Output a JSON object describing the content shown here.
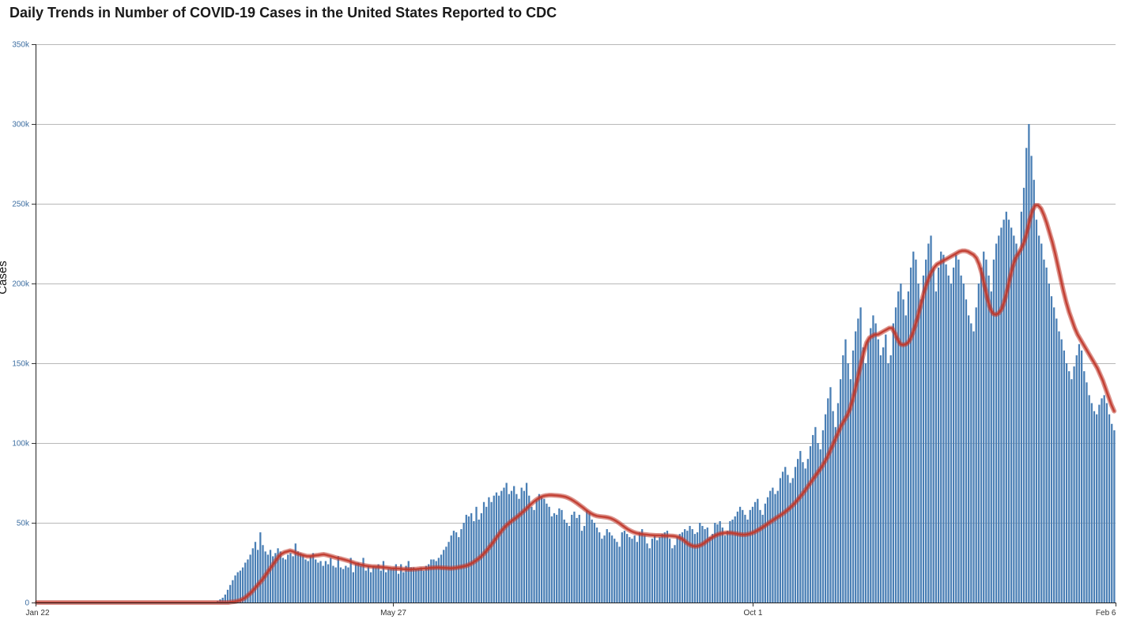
{
  "chart_data": {
    "type": "bar",
    "title": "Daily Trends in Number of COVID-19 Cases in the United States Reported to CDC",
    "ylabel": "Cases",
    "xlabel": "",
    "ylim": [
      0,
      350000
    ],
    "grid": true,
    "y_ticks": [
      "0",
      "50k",
      "100k",
      "150k",
      "200k",
      "250k",
      "300k",
      "350k"
    ],
    "x_ticks": [
      "Jan 22",
      "May 27",
      "Oct 1",
      "Feb 6"
    ],
    "x_start": "2020-01-22",
    "x_end": "2021-02-06",
    "series": [
      {
        "type": "bar",
        "color": "#4a7fb5",
        "values": [
          0,
          0,
          0,
          0,
          0,
          0,
          0,
          0,
          0,
          0,
          0,
          0,
          0,
          0,
          0,
          0,
          0,
          0,
          0,
          0,
          0,
          0,
          0,
          0,
          0,
          0,
          0,
          0,
          0,
          0,
          0,
          0,
          0,
          0,
          0,
          0,
          0,
          0,
          0,
          0,
          0,
          0,
          0,
          0,
          0,
          0,
          0,
          0,
          0,
          0,
          0,
          0,
          0,
          0,
          0,
          0,
          0,
          0,
          0,
          0,
          0,
          0,
          0,
          0,
          0,
          0,
          0,
          0,
          0,
          0,
          0,
          0,
          1000,
          2000,
          3000,
          5000,
          8000,
          11000,
          14000,
          17000,
          19000,
          20000,
          22000,
          25000,
          27000,
          30000,
          34000,
          38000,
          33000,
          44000,
          36000,
          32000,
          30000,
          33000,
          29000,
          31000,
          34000,
          32000,
          28000,
          27000,
          30000,
          31000,
          29000,
          37000,
          32000,
          31000,
          30000,
          27000,
          26000,
          29000,
          31000,
          27000,
          25000,
          26000,
          23000,
          26000,
          24000,
          28000,
          23000,
          22000,
          29000,
          22000,
          21000,
          23000,
          22000,
          28000,
          19000,
          24000,
          25000,
          23000,
          28000,
          20000,
          23000,
          19000,
          23000,
          22000,
          24000,
          20000,
          26000,
          19000,
          21000,
          21000,
          22000,
          24000,
          18000,
          24000,
          19000,
          23000,
          26000,
          22000,
          22000,
          21000,
          21000,
          22000,
          20000,
          23000,
          24000,
          27000,
          27000,
          26000,
          28000,
          30000,
          33000,
          35000,
          38000,
          42000,
          45000,
          44000,
          41000,
          46000,
          50000,
          55000,
          54000,
          56000,
          51000,
          60000,
          52000,
          56000,
          63000,
          60000,
          66000,
          63000,
          67000,
          69000,
          67000,
          70000,
          72000,
          75000,
          68000,
          70000,
          73000,
          68000,
          65000,
          72000,
          70000,
          75000,
          67000,
          60000,
          58000,
          64000,
          68000,
          66000,
          65000,
          62000,
          60000,
          54000,
          56000,
          55000,
          59000,
          58000,
          52000,
          50000,
          48000,
          55000,
          57000,
          53000,
          55000,
          45000,
          48000,
          58000,
          56000,
          52000,
          50000,
          47000,
          44000,
          40000,
          42000,
          46000,
          44000,
          42000,
          40000,
          38000,
          35000,
          44000,
          45000,
          43000,
          41000,
          40000,
          42000,
          38000,
          44000,
          46000,
          42000,
          37000,
          34000,
          40000,
          42000,
          39000,
          41000,
          43000,
          44000,
          45000,
          40000,
          34000,
          36000,
          41000,
          43000,
          44000,
          46000,
          45000,
          48000,
          46000,
          43000,
          44000,
          50000,
          48000,
          46000,
          47000,
          41000,
          43000,
          50000,
          49000,
          51000,
          47000,
          42000,
          45000,
          51000,
          52000,
          54000,
          57000,
          60000,
          58000,
          55000,
          52000,
          58000,
          60000,
          63000,
          65000,
          58000,
          55000,
          62000,
          66000,
          70000,
          72000,
          68000,
          70000,
          78000,
          82000,
          85000,
          80000,
          75000,
          78000,
          85000,
          90000,
          95000,
          88000,
          84000,
          90000,
          98000,
          105000,
          110000,
          100000,
          96000,
          108000,
          118000,
          128000,
          135000,
          120000,
          110000,
          125000,
          140000,
          155000,
          165000,
          150000,
          140000,
          158000,
          170000,
          178000,
          185000,
          160000,
          150000,
          165000,
          172000,
          180000,
          175000,
          165000,
          155000,
          160000,
          168000,
          150000,
          155000,
          175000,
          185000,
          195000,
          200000,
          190000,
          180000,
          195000,
          210000,
          220000,
          215000,
          200000,
          190000,
          205000,
          215000,
          225000,
          230000,
          210000,
          195000,
          210000,
          220000,
          218000,
          212000,
          205000,
          200000,
          210000,
          218000,
          215000,
          205000,
          200000,
          190000,
          180000,
          175000,
          170000,
          185000,
          200000,
          210000,
          220000,
          215000,
          205000,
          195000,
          215000,
          225000,
          230000,
          235000,
          240000,
          245000,
          240000,
          235000,
          230000,
          225000,
          220000,
          245000,
          260000,
          285000,
          300000,
          280000,
          265000,
          240000,
          230000,
          225000,
          215000,
          210000,
          200000,
          192000,
          185000,
          178000,
          170000,
          165000,
          158000,
          150000,
          145000,
          140000,
          148000,
          155000,
          162000,
          158000,
          145000,
          138000,
          130000,
          125000,
          120000,
          118000,
          124000,
          128000,
          130000,
          125000,
          118000,
          112000,
          108000
        ]
      },
      {
        "type": "line",
        "name": "",
        "color": "#c0392b",
        "values": [
          0,
          0,
          0,
          0,
          0,
          0,
          0,
          0,
          0,
          0,
          0,
          0,
          0,
          0,
          0,
          0,
          0,
          0,
          0,
          0,
          0,
          0,
          0,
          0,
          0,
          0,
          0,
          0,
          0,
          0,
          0,
          0,
          0,
          0,
          0,
          0,
          0,
          0,
          0,
          0,
          0,
          0,
          0,
          0,
          0,
          0,
          0,
          0,
          0,
          0,
          0,
          0,
          0,
          0,
          0,
          0,
          0,
          0,
          0,
          0,
          0,
          0,
          0,
          0,
          0,
          0,
          0,
          0,
          0,
          300,
          500,
          800,
          1200,
          2000,
          3000,
          4500,
          6000,
          8000,
          10000,
          12000,
          14000,
          16500,
          19000,
          21500,
          24000,
          26500,
          29000,
          30500,
          31500,
          32000,
          32500,
          32000,
          31200,
          30500,
          30000,
          29500,
          29000,
          29000,
          29200,
          29500,
          29700,
          30000,
          30200,
          29800,
          29300,
          28800,
          28300,
          27800,
          27500,
          27000,
          26500,
          26000,
          25300,
          24700,
          24200,
          23800,
          23400,
          23000,
          22800,
          22600,
          22500,
          22400,
          22300,
          22100,
          21900,
          21700,
          21500,
          21400,
          21300,
          21200,
          21000,
          20900,
          20800,
          20800,
          20900,
          21000,
          21200,
          21300,
          21400,
          21500,
          21700,
          21800,
          21900,
          21900,
          21800,
          21700,
          21600,
          21500,
          21600,
          21800,
          22100,
          22400,
          22800,
          23300,
          24000,
          25000,
          26200,
          27500,
          29000,
          30800,
          32800,
          35000,
          37300,
          39800,
          42200,
          44500,
          46600,
          48500,
          50000,
          51400,
          52700,
          54100,
          55600,
          57200,
          58800,
          60500,
          62200,
          63700,
          65000,
          66000,
          66700,
          67100,
          67300,
          67300,
          67200,
          67100,
          66900,
          66600,
          66200,
          65500,
          64600,
          63500,
          62300,
          61000,
          59700,
          58300,
          57000,
          55800,
          54900,
          54300,
          54000,
          53800,
          53600,
          53300,
          52800,
          52000,
          51000,
          49800,
          48500,
          47200,
          46000,
          45000,
          44200,
          43600,
          43200,
          42900,
          42700,
          42500,
          42300,
          42200,
          42100,
          42100,
          42000,
          41900,
          41800,
          41800,
          41700,
          41500,
          41000,
          40200,
          39000,
          37500,
          36300,
          35500,
          35200,
          35400,
          36000,
          37000,
          38300,
          39600,
          40800,
          41800,
          42600,
          43200,
          43500,
          43700,
          43700,
          43600,
          43300,
          43000,
          42700,
          42500,
          42600,
          42900,
          43400,
          44100,
          45000,
          46000,
          47200,
          48400,
          49600,
          50800,
          52000,
          53200,
          54300,
          55500,
          56800,
          58200,
          59800,
          61500,
          63400,
          65500,
          67700,
          70000,
          72500,
          75000,
          77500,
          80000,
          82500,
          85000,
          88000,
          91000,
          95000,
          99000,
          103000,
          107000,
          111000,
          114000,
          117000,
          121000,
          127000,
          134000,
          142000,
          150000,
          157000,
          163000,
          166000,
          167000,
          168000,
          168000,
          169000,
          170000,
          171000,
          172000,
          172000,
          169000,
          165000,
          162000,
          161500,
          162000,
          163500,
          167000,
          172000,
          178000,
          185000,
          192000,
          198000,
          203000,
          207000,
          210000,
          212000,
          213000,
          214000,
          215000,
          216000,
          217000,
          218000,
          219000,
          220000,
          220500,
          220500,
          220000,
          219000,
          218000,
          216000,
          212000,
          206000,
          198000,
          190000,
          184000,
          181000,
          180500,
          181500,
          184000,
          189000,
          196000,
          204000,
          211000,
          216000,
          219000,
          222000,
          226000,
          232000,
          240000,
          246000,
          249000,
          249000,
          247000,
          243000,
          238000,
          232000,
          226000,
          219000,
          211000,
          203000,
          195000,
          188000,
          182000,
          177000,
          172000,
          168000,
          165000,
          162000,
          159000,
          156000,
          153000,
          150000,
          147000,
          143000,
          139000,
          134000,
          129000,
          124000,
          120000
        ]
      }
    ]
  }
}
